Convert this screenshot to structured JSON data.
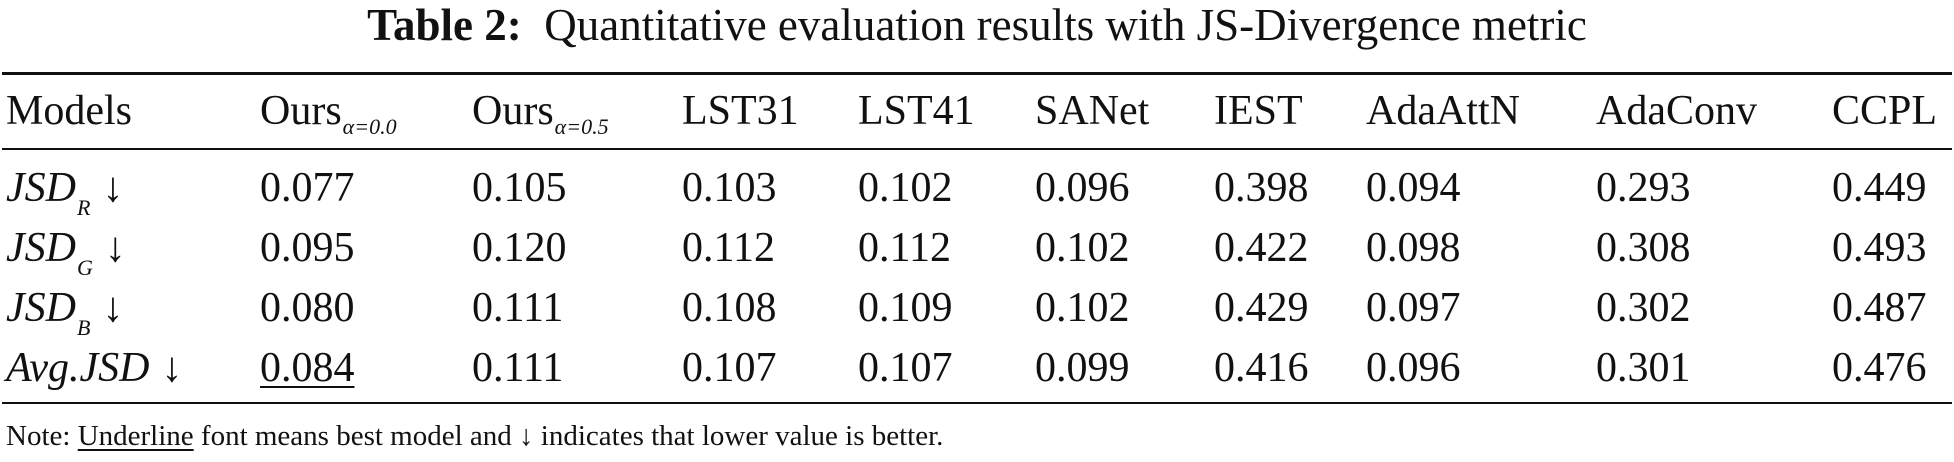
{
  "caption": {
    "label": "Table 2:",
    "text": "Quantitative evaluation results with JS-Divergence metric"
  },
  "table": {
    "header": {
      "models": "Models",
      "ours0": {
        "base": "Ours",
        "sub": "α=0.0"
      },
      "ours5": {
        "base": "Ours",
        "sub": "α=0.5"
      },
      "lst31": "LST31",
      "lst41": "LST41",
      "sanet": "SANet",
      "iest": "IEST",
      "adaattn": "AdaAttN",
      "adaconv": "AdaConv",
      "ccpl": "CCPL"
    },
    "rows": [
      {
        "label": {
          "base": "JSD",
          "sub": "R",
          "arrow": "↓"
        },
        "values": [
          "0.077",
          "0.105",
          "0.103",
          "0.102",
          "0.096",
          "0.398",
          "0.094",
          "0.293",
          "0.449"
        ]
      },
      {
        "label": {
          "base": "JSD",
          "sub": "G",
          "arrow": "↓"
        },
        "values": [
          "0.095",
          "0.120",
          "0.112",
          "0.112",
          "0.102",
          "0.422",
          "0.098",
          "0.308",
          "0.493"
        ]
      },
      {
        "label": {
          "base": "JSD",
          "sub": "B",
          "arrow": "↓"
        },
        "values": [
          "0.080",
          "0.111",
          "0.108",
          "0.109",
          "0.102",
          "0.429",
          "0.097",
          "0.302",
          "0.487"
        ]
      },
      {
        "label": {
          "base": "Avg.JSD",
          "sub": "",
          "arrow": "↓"
        },
        "values": [
          "0.084",
          "0.111",
          "0.107",
          "0.107",
          "0.099",
          "0.416",
          "0.096",
          "0.301",
          "0.476"
        ]
      }
    ]
  },
  "note": {
    "prefix": "Note: ",
    "underlined": "Underline",
    "suffix": " font means best model and ↓ indicates that lower value is better."
  }
}
